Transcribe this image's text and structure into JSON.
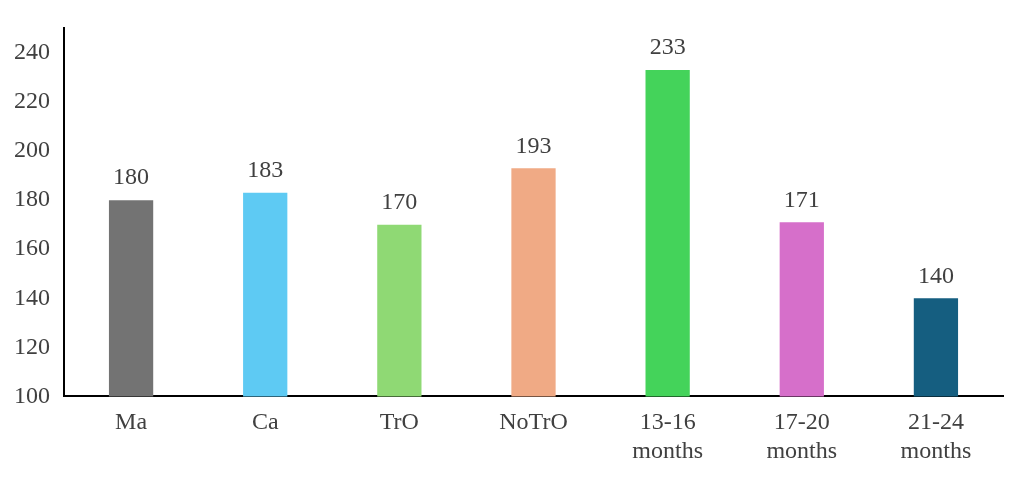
{
  "chart_data": {
    "type": "bar",
    "categories": [
      "Ma",
      "Ca",
      "TrO",
      "NoTrO",
      "13-16 months",
      "17-20 months",
      "21-24 months"
    ],
    "values": [
      180,
      183,
      170,
      193,
      233,
      171,
      140
    ],
    "colors": [
      "#737373",
      "#5ecaf3",
      "#8fd974",
      "#f0aa85",
      "#44d35a",
      "#d66fca",
      "#155e80"
    ],
    "ylim": [
      100,
      250
    ],
    "yticks": [
      100,
      120,
      140,
      160,
      180,
      200,
      220,
      240
    ],
    "grid": false,
    "legend": false,
    "data_labels": true
  }
}
